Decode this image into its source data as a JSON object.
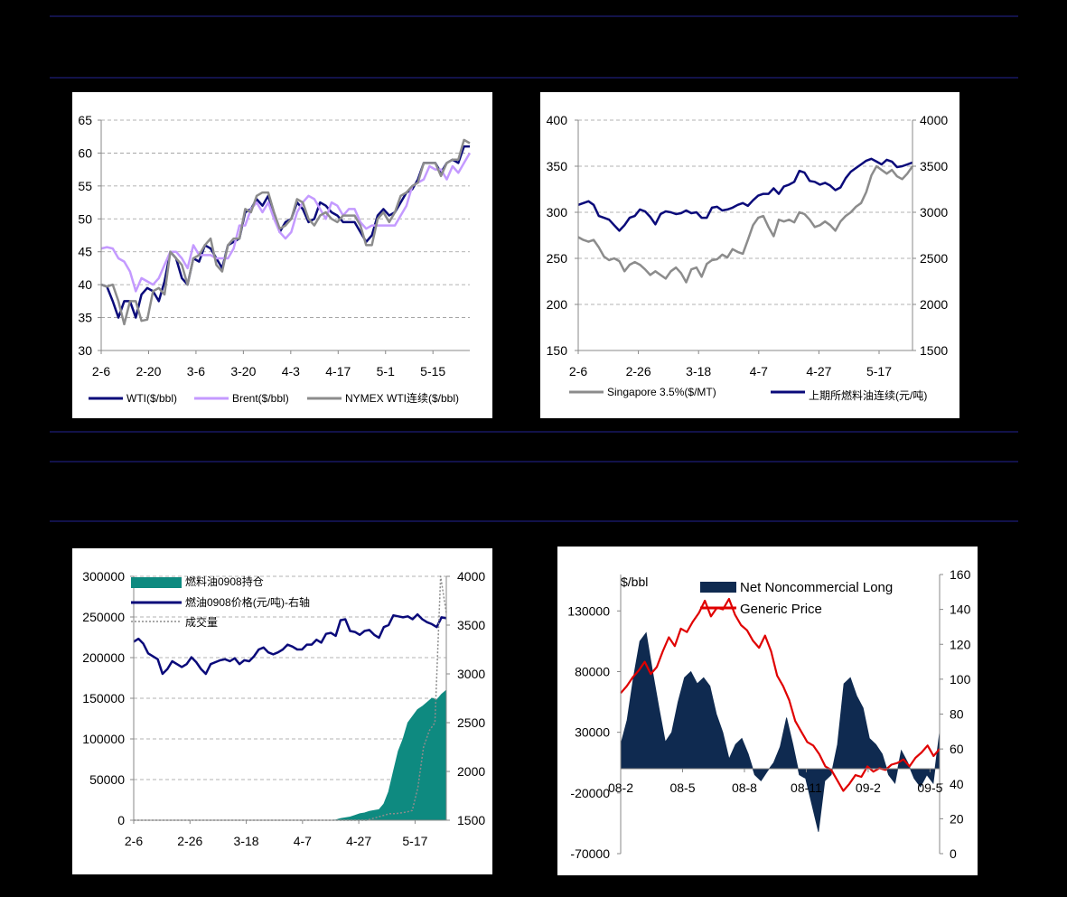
{
  "chart_data": [
    {
      "type": "line",
      "x_ticks": [
        "2-6",
        "2-20",
        "3-6",
        "3-20",
        "4-3",
        "4-17",
        "5-1",
        "5-15"
      ],
      "ylim": [
        30,
        65
      ],
      "y_ticks": [
        30,
        35,
        40,
        45,
        50,
        55,
        60,
        65
      ],
      "grid": true,
      "legend_position": "bottom",
      "series": [
        {
          "name": "WTI($/bbl)",
          "color": "#0a0a7a",
          "values": [
            40,
            39.7,
            37.5,
            35,
            37.5,
            37.5,
            35,
            38.5,
            39.5,
            39,
            37.5,
            40.5,
            45,
            44,
            41,
            40,
            44,
            43.5,
            46,
            45.5,
            44,
            42.5,
            46,
            46.5,
            47,
            51,
            51.5,
            53,
            52,
            53.5,
            50.5,
            48,
            49.5,
            50,
            52.5,
            51.5,
            49.5,
            50,
            52.5,
            52,
            51,
            50.5,
            49.5,
            49.5,
            49.5,
            48,
            46.5,
            47.5,
            50.5,
            51.5,
            50.5,
            51,
            52.5,
            54,
            54.5,
            56,
            58.5,
            58.5,
            58.5,
            57,
            58.5,
            59,
            58.5,
            61,
            61
          ]
        },
        {
          "name": "Brent($/bbl)",
          "color": "#c49aff",
          "values": [
            45.5,
            45.7,
            45.5,
            44,
            43.5,
            42,
            39,
            41,
            40.5,
            40,
            41,
            43,
            45,
            45,
            44,
            42.5,
            46,
            44.5,
            44.5,
            44.5,
            44,
            44,
            44,
            45.5,
            49,
            49,
            51.5,
            52.5,
            51,
            52.5,
            50,
            48,
            47,
            48,
            51,
            52.5,
            53.5,
            53,
            51.5,
            50,
            52.5,
            52,
            50.5,
            51.5,
            51.5,
            49.5,
            48.5,
            49,
            49,
            49,
            49,
            49,
            50.5,
            52,
            55,
            55.5,
            56,
            58,
            57.5,
            57.5,
            56,
            58,
            57,
            58.5,
            60
          ]
        },
        {
          "name": "NYMEX WTI连续($/bbl)",
          "color": "#8c8c8c",
          "values": [
            40,
            39.7,
            40,
            37.5,
            34,
            37.5,
            37.5,
            34.5,
            34.7,
            39,
            39.5,
            38.5,
            45,
            44,
            43,
            40,
            44,
            44.5,
            46,
            47,
            43,
            42,
            46,
            47,
            47,
            51.5,
            51,
            53.5,
            54,
            54,
            51,
            48.5,
            49,
            50,
            53,
            52.5,
            50,
            49,
            50.5,
            51,
            50,
            49.5,
            50.5,
            50.5,
            50.5,
            49,
            46,
            46,
            50,
            51,
            49.5,
            51,
            53.5,
            54,
            55,
            55.5,
            58.5,
            58.5,
            58.5,
            56.5,
            58.5,
            59,
            59,
            62,
            61.5
          ]
        }
      ]
    },
    {
      "type": "line",
      "x_ticks": [
        "2-6",
        "2-26",
        "3-18",
        "4-7",
        "4-27",
        "5-17"
      ],
      "ylim_left": [
        150,
        400
      ],
      "y_ticks_left": [
        150,
        200,
        250,
        300,
        350,
        400
      ],
      "ylim_right": [
        1500,
        4000
      ],
      "y_ticks_right": [
        1500,
        2000,
        2500,
        3000,
        3500,
        4000
      ],
      "grid": true,
      "legend_position": "bottom",
      "series": [
        {
          "name": "Singapore 3.5%($/MT)",
          "axis": "left",
          "color": "#8c8c8c",
          "values": [
            273,
            270,
            268,
            270,
            262,
            252,
            248,
            250,
            247,
            236,
            243,
            246,
            243,
            238,
            232,
            236,
            232,
            228,
            236,
            240,
            234,
            224,
            238,
            240,
            230,
            244,
            248,
            249,
            254,
            251,
            260,
            257,
            255,
            270,
            286,
            294,
            296,
            284,
            274,
            292,
            290,
            292,
            289,
            300,
            298,
            292,
            284,
            286,
            290,
            286,
            280,
            290,
            296,
            300,
            306,
            310,
            322,
            340,
            350,
            346,
            342,
            346,
            339,
            336,
            342,
            350
          ]
        },
        {
          "name": "上期所燃料油连续(元/吨)",
          "axis": "right",
          "color": "#0a0a7a",
          "values": [
            3080,
            3100,
            3120,
            3080,
            2960,
            2940,
            2920,
            2860,
            2800,
            2860,
            2940,
            2960,
            3030,
            3010,
            2950,
            2870,
            2980,
            3010,
            3000,
            2980,
            2990,
            3020,
            2990,
            3000,
            2940,
            2940,
            3050,
            3060,
            3020,
            3030,
            3050,
            3080,
            3100,
            3070,
            3130,
            3180,
            3200,
            3200,
            3260,
            3200,
            3280,
            3300,
            3330,
            3450,
            3430,
            3340,
            3330,
            3300,
            3320,
            3290,
            3240,
            3270,
            3370,
            3440,
            3480,
            3520,
            3560,
            3580,
            3550,
            3520,
            3570,
            3550,
            3490,
            3500,
            3520,
            3540
          ]
        }
      ]
    },
    {
      "type": "area",
      "x_ticks": [
        "2-6",
        "2-26",
        "3-18",
        "4-7",
        "4-27",
        "5-17"
      ],
      "ylim_left": [
        0,
        300000
      ],
      "y_ticks_left": [
        0,
        50000,
        100000,
        150000,
        200000,
        250000,
        300000
      ],
      "ylim_right": [
        1500,
        4000
      ],
      "y_ticks_right": [
        1500,
        2000,
        2500,
        3000,
        3500,
        4000
      ],
      "grid": true,
      "legend_position": "top-left",
      "series": [
        {
          "name": "燃料油0908持仓",
          "axis": "left",
          "kind": "area",
          "color": "#0e8a80",
          "values": [
            0,
            0,
            0,
            0,
            0,
            0,
            0,
            0,
            0,
            0,
            0,
            0,
            0,
            0,
            0,
            0,
            0,
            0,
            0,
            0,
            0,
            0,
            0,
            0,
            0,
            0,
            0,
            0,
            0,
            0,
            0,
            0,
            0,
            0,
            0,
            0,
            0,
            0,
            0,
            0,
            0,
            0,
            500,
            2000,
            3000,
            4000,
            6000,
            8000,
            9000,
            11000,
            12000,
            13000,
            20000,
            35000,
            60000,
            85000,
            100000,
            120000,
            128000,
            136000,
            140000,
            145000,
            150000,
            148000,
            155000,
            160000
          ]
        },
        {
          "name": "燃油0908价格(元/吨)-右轴",
          "axis": "right",
          "kind": "line",
          "color": "#0a0a7a",
          "values": [
            3330,
            3360,
            3310,
            3210,
            3180,
            3150,
            3000,
            3050,
            3130,
            3100,
            3070,
            3100,
            3170,
            3120,
            3050,
            3000,
            3100,
            3120,
            3140,
            3150,
            3130,
            3160,
            3100,
            3140,
            3130,
            3180,
            3250,
            3270,
            3220,
            3200,
            3220,
            3250,
            3300,
            3280,
            3250,
            3250,
            3300,
            3300,
            3350,
            3320,
            3410,
            3420,
            3390,
            3550,
            3560,
            3440,
            3430,
            3400,
            3440,
            3450,
            3400,
            3370,
            3480,
            3500,
            3600,
            3590,
            3580,
            3590,
            3560,
            3610,
            3560,
            3530,
            3510,
            3480,
            3580,
            3570
          ]
        },
        {
          "name": "成交量",
          "axis": "left",
          "kind": "line-dotted",
          "color": "#8c8c8c",
          "values": [
            0,
            0,
            0,
            0,
            0,
            0,
            0,
            0,
            0,
            0,
            0,
            0,
            0,
            0,
            0,
            0,
            0,
            0,
            0,
            0,
            0,
            0,
            0,
            0,
            0,
            0,
            0,
            0,
            0,
            0,
            0,
            0,
            0,
            0,
            0,
            0,
            0,
            0,
            0,
            0,
            0,
            0,
            2000,
            4000,
            6000,
            8000,
            8000,
            9000,
            10000,
            12000,
            40000,
            90000,
            110000,
            120000,
            300000,
            255000
          ]
        }
      ]
    },
    {
      "type": "area",
      "x_ticks": [
        "08-2",
        "08-5",
        "08-8",
        "08-11",
        "09-2",
        "09-5"
      ],
      "ylabel_left": "$/bbl",
      "ylim_left": [
        -70000,
        160000
      ],
      "y_ticks_left": [
        -70000,
        -20000,
        30000,
        80000,
        130000
      ],
      "ylim_right": [
        0,
        160
      ],
      "y_ticks_right": [
        0,
        20,
        40,
        60,
        80,
        100,
        120,
        140,
        160
      ],
      "grid": false,
      "legend_position": "top",
      "series": [
        {
          "name": "Net Noncommercial Long",
          "axis": "left",
          "kind": "area",
          "color": "#0f2a50",
          "values": [
            20000,
            40000,
            75000,
            105000,
            112000,
            80000,
            50000,
            22000,
            30000,
            55000,
            75000,
            80000,
            70000,
            75000,
            68000,
            45000,
            30000,
            8000,
            20000,
            25000,
            12000,
            -5000,
            -10000,
            -2000,
            5000,
            18000,
            42000,
            20000,
            -5000,
            -8000,
            -30000,
            -52000,
            -10000,
            -5000,
            20000,
            70000,
            75000,
            60000,
            50000,
            25000,
            20000,
            12000,
            -5000,
            -12000,
            15000,
            5000,
            -8000,
            -15000,
            -5000,
            -12000,
            30000
          ]
        },
        {
          "name": "Generic Price",
          "axis": "right",
          "kind": "line",
          "color": "#e00000",
          "values": [
            92,
            96,
            101,
            105,
            110,
            103,
            107,
            116,
            124,
            119,
            129,
            127,
            133,
            138,
            145,
            136,
            141,
            140,
            146,
            137,
            131,
            128,
            122,
            118,
            125,
            116,
            102,
            96,
            88,
            76,
            70,
            64,
            62,
            57,
            50,
            48,
            42,
            36,
            40,
            45,
            44,
            50,
            47,
            49,
            48,
            51,
            52,
            54,
            50,
            55,
            58,
            62,
            56,
            60
          ]
        }
      ]
    }
  ]
}
